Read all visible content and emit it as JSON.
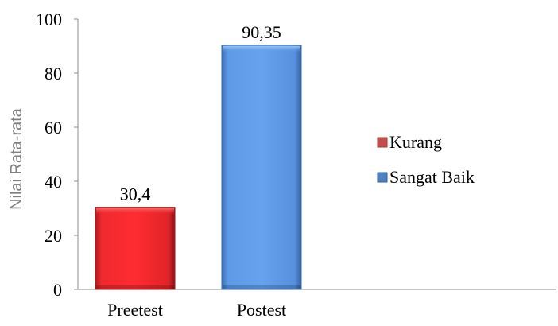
{
  "chart_data": {
    "type": "bar",
    "title": "",
    "xlabel": "",
    "ylabel": "Nilai Rata-rata",
    "ylim": [
      0,
      100
    ],
    "yticks": [
      0,
      20,
      40,
      60,
      80,
      100
    ],
    "ytick_labels": [
      "0",
      "20",
      "40",
      "60",
      "80",
      "100"
    ],
    "categories": [
      "Preetest",
      "Postest"
    ],
    "values": [
      30.4,
      90.35
    ],
    "data_labels": [
      "30,4",
      "90,35"
    ],
    "bar_colors": [
      "#e8262a",
      "#5b96e0"
    ],
    "legend": {
      "placement": "right",
      "items": [
        {
          "name": "Kurang",
          "color": "#c0504d"
        },
        {
          "name": "Sangat Baik",
          "color": "#4f81bd"
        }
      ]
    },
    "grid": false
  }
}
